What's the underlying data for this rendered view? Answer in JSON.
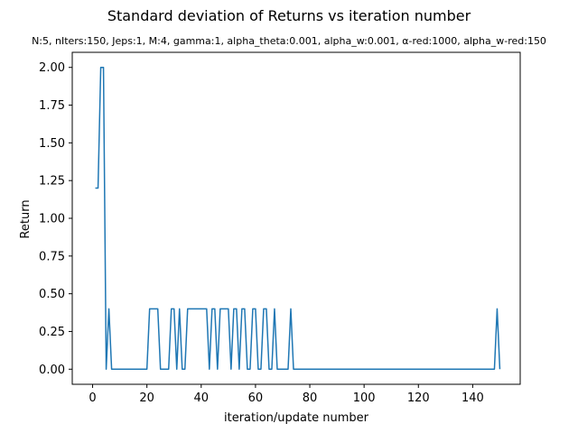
{
  "chart_data": {
    "type": "line",
    "title": "Standard deviation of Returns vs iteration number",
    "subtitle": "N:5, nIters:150, Jeps:1, M:4, gamma:1, alpha_theta:0.001, alpha_w:0.001, α-red:1000, alpha_w-red:150",
    "xlabel": "iteration/update number",
    "ylabel": "Return",
    "xlim": [
      -7.5,
      157.5
    ],
    "ylim": [
      -0.1,
      2.1
    ],
    "x_ticks": [
      0,
      20,
      40,
      60,
      80,
      100,
      120,
      140
    ],
    "x_tick_labels": [
      "0",
      "20",
      "40",
      "60",
      "80",
      "100",
      "120",
      "140"
    ],
    "y_ticks": [
      0,
      0.25,
      0.5,
      0.75,
      1.0,
      1.25,
      1.5,
      1.75,
      2.0
    ],
    "y_tick_labels": [
      "0.00",
      "0.25",
      "0.50",
      "0.75",
      "1.00",
      "1.25",
      "1.50",
      "1.75",
      "2.00"
    ],
    "grid": false,
    "line_color": "#1f77b4",
    "series": [
      {
        "values": [
          1.2,
          1.2,
          2.0,
          2.0,
          0.0,
          0.4,
          0.0,
          0.0,
          0.0,
          0.0,
          0.0,
          0.0,
          0.0,
          0.0,
          0.0,
          0.0,
          0.0,
          0.0,
          0.0,
          0.0,
          0.4,
          0.4,
          0.4,
          0.4,
          0.0,
          0.0,
          0.0,
          0.0,
          0.4,
          0.4,
          0.0,
          0.4,
          0.0,
          0.0,
          0.4,
          0.4,
          0.4,
          0.4,
          0.4,
          0.4,
          0.4,
          0.4,
          0.0,
          0.4,
          0.4,
          0.0,
          0.4,
          0.4,
          0.4,
          0.4,
          0.0,
          0.4,
          0.4,
          0.0,
          0.4,
          0.4,
          0.0,
          0.0,
          0.4,
          0.4,
          0.0,
          0.0,
          0.4,
          0.4,
          0.0,
          0.0,
          0.4,
          0.0,
          0.0,
          0.0,
          0.0,
          0.0,
          0.4,
          0.0,
          0.0,
          0.0,
          0.0,
          0.0,
          0.0,
          0.0,
          0.0,
          0.0,
          0.0,
          0.0,
          0.0,
          0.0,
          0.0,
          0.0,
          0.0,
          0.0,
          0.0,
          0.0,
          0.0,
          0.0,
          0.0,
          0.0,
          0.0,
          0.0,
          0.0,
          0.0,
          0.0,
          0.0,
          0.0,
          0.0,
          0.0,
          0.0,
          0.0,
          0.0,
          0.0,
          0.0,
          0.0,
          0.0,
          0.0,
          0.0,
          0.0,
          0.0,
          0.0,
          0.0,
          0.0,
          0.0,
          0.0,
          0.0,
          0.0,
          0.0,
          0.0,
          0.0,
          0.0,
          0.0,
          0.0,
          0.0,
          0.0,
          0.0,
          0.0,
          0.0,
          0.0,
          0.0,
          0.0,
          0.0,
          0.0,
          0.0,
          0.0,
          0.0,
          0.0,
          0.0,
          0.0,
          0.0,
          0.0,
          0.0,
          0.4,
          0.0
        ]
      }
    ]
  }
}
